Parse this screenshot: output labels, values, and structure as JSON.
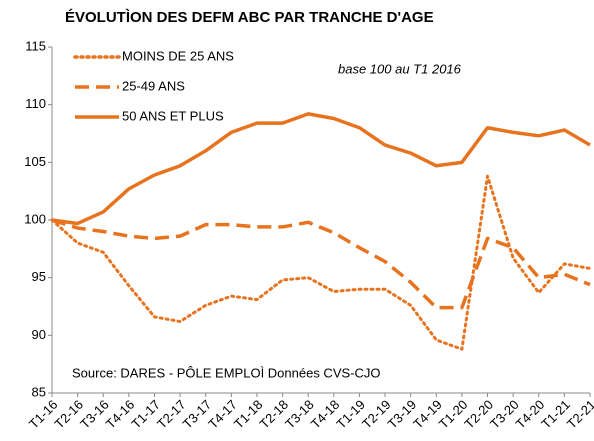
{
  "chart_data": {
    "type": "line",
    "title": "ÉVOLUTÌON DES DEFM ABC PAR TRANCHE D'AGE",
    "annotations": [
      "base 100 au T1 2016",
      "Source: DARES - PÔLE EMPLOÌ  Données CVS-CJO"
    ],
    "categories": [
      "T1-16",
      "T2-16",
      "T3-16",
      "T4-16",
      "T1-17",
      "T2-17",
      "T3-17",
      "T4-17",
      "T1-18",
      "T2-18",
      "T3-18",
      "T4-18",
      "T1-19",
      "T2-19",
      "T3-19",
      "T4-19",
      "T1-20",
      "T2-20",
      "T3-20",
      "T4-20",
      "T1-21",
      "T2-21"
    ],
    "series": [
      {
        "name": "MOINS DE 25 ANS",
        "color": "#e8731e",
        "dash": "dotted",
        "values": [
          100,
          98,
          97.2,
          94.3,
          91.6,
          91.2,
          92.6,
          93.4,
          93.1,
          94.8,
          95,
          93.8,
          94,
          94,
          92.6,
          89.6,
          88.8,
          103.8,
          96.7,
          93.7,
          96.2,
          95.8
        ]
      },
      {
        "name": "25-49 ANS",
        "color": "#e8731e",
        "dash": "dashed",
        "values": [
          100,
          99.3,
          99,
          98.6,
          98.4,
          98.6,
          99.6,
          99.6,
          99.4,
          99.4,
          99.8,
          98.9,
          97.6,
          96.4,
          94.6,
          92.4,
          92.4,
          98.4,
          97.6,
          95,
          95.3,
          94.4
        ]
      },
      {
        "name": "50 ANS ET PLUS",
        "color": "#e8731e",
        "dash": "solid",
        "values": [
          100,
          99.7,
          100.7,
          102.7,
          103.9,
          104.7,
          106,
          107.6,
          108.4,
          108.4,
          109.2,
          108.8,
          108,
          106.5,
          105.8,
          104.7,
          105,
          108,
          107.6,
          107.3,
          107.8,
          106.5
        ]
      }
    ],
    "ylim": [
      85,
      115
    ],
    "yticks": [
      85,
      90,
      95,
      100,
      105,
      110,
      115
    ],
    "grid": false,
    "legend": "top-left"
  }
}
